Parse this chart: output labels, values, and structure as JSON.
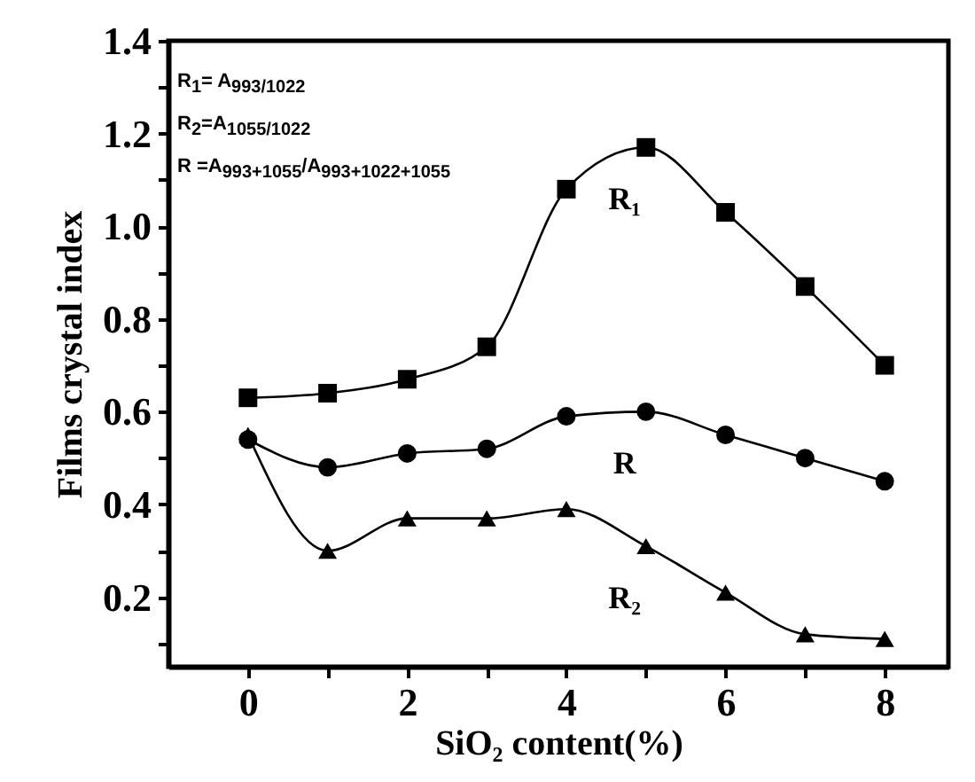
{
  "chart_data": {
    "type": "line",
    "xlabel": "SiO₂ content(%)",
    "ylabel": "Films crystal index",
    "x": [
      0,
      1,
      2,
      3,
      4,
      5,
      6,
      7,
      8
    ],
    "series": [
      {
        "name": "R₁",
        "color": "#000000",
        "marker": "square",
        "values": [
          0.63,
          0.64,
          0.67,
          0.74,
          1.08,
          1.17,
          1.03,
          0.87,
          0.7
        ]
      },
      {
        "name": "R",
        "color": "#000000",
        "marker": "circle",
        "values": [
          0.54,
          0.48,
          0.51,
          0.52,
          0.59,
          0.6,
          0.55,
          0.5,
          0.45
        ]
      },
      {
        "name": "R₂",
        "color": "#000000",
        "marker": "triangle",
        "values": [
          0.55,
          0.3,
          0.37,
          0.37,
          0.39,
          0.31,
          0.21,
          0.12,
          0.11
        ]
      }
    ],
    "xlim": [
      -1,
      8.8
    ],
    "xticks": [
      0,
      {
        "value": 1,
        "label": null
      },
      2,
      {
        "value": 3,
        "label": null
      },
      4,
      {
        "value": 5,
        "label": null
      },
      6,
      {
        "value": 7,
        "label": null
      },
      8
    ],
    "ylim": [
      0.05,
      1.4
    ],
    "yticks": [
      {
        "value": 0.1,
        "label": null
      },
      0.2,
      {
        "value": 0.3,
        "label": null
      },
      0.4,
      {
        "value": 0.5,
        "label": null
      },
      0.6,
      {
        "value": 0.7,
        "label": null
      },
      0.8,
      {
        "value": 0.9,
        "label": null
      },
      {
        "value": 1,
        "label": "1.0"
      },
      {
        "value": 1.1,
        "label": null
      },
      1.2,
      {
        "value": 1.3,
        "label": null
      },
      1.4
    ],
    "annotations": [
      "R$_{1}$= A$_{993/1022}$",
      "R$_{2}$=A$_{1055/1022}$",
      "R =A$_{993+1055}$/A$_{993+1022+1055}$"
    ],
    "grid": false,
    "line_style": "solid"
  }
}
